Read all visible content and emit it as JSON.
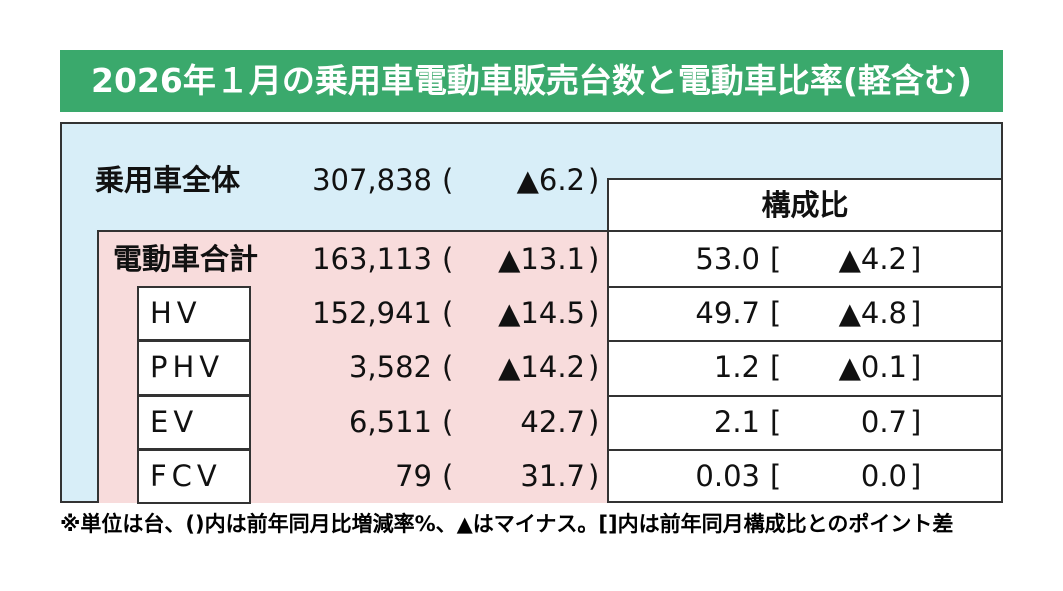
{
  "header": {
    "title": "2026年１月の乗用車電動車販売台数と電動車比率(軽含む)"
  },
  "table": {
    "brackets": {
      "change": [
        "(",
        ")"
      ],
      "share": [
        "[",
        "]"
      ]
    },
    "share_header": "構成比",
    "total": {
      "label": "乗用車全体",
      "units": "307,838",
      "change": "▲6.2"
    },
    "rows": [
      {
        "label": "電動車合計",
        "units": "163,113",
        "change": "▲13.1",
        "share": "53.0",
        "share_change": "▲4.2"
      },
      {
        "label": "HV",
        "units": "152,941",
        "change": "▲14.5",
        "share": "49.7",
        "share_change": "▲4.8"
      },
      {
        "label": "PHV",
        "units": "3,582",
        "change": "▲14.2",
        "share": "1.2",
        "share_change": "▲0.1"
      },
      {
        "label": "EV",
        "units": "6,511",
        "change": "42.7",
        "share": "2.1",
        "share_change": "0.7"
      },
      {
        "label": "FCV",
        "units": "79",
        "change": "31.7",
        "share": "0.03",
        "share_change": "0.0"
      }
    ]
  },
  "note": "※単位は台、()内は前年同月比増減率%、▲はマイナス。[]内は前年同月構成比とのポイント差"
}
